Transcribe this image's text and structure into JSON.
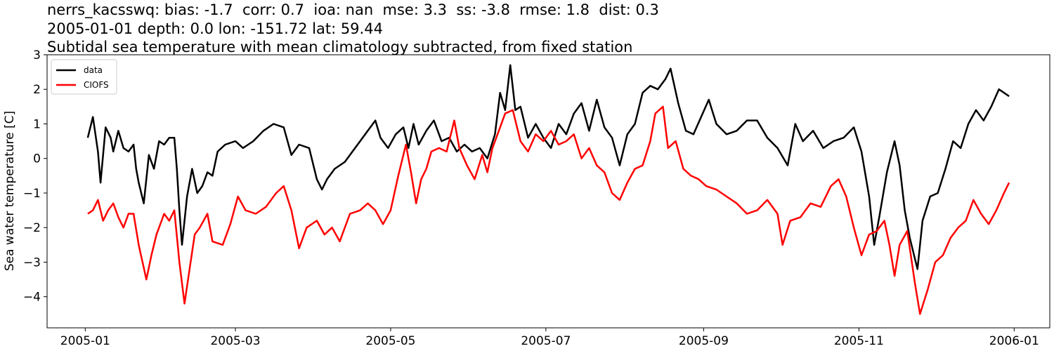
{
  "title": {
    "line1": "nerrs_kacsswq: bias: -1.7  corr: 0.7  ioa: nan  mse: 3.3  ss: -3.8  rmse: 1.8  dist: 0.3",
    "line2": "2005-01-01 depth: 0.0 lon: -151.72 lat: 59.44",
    "line3": "Subtidal sea temperature with mean climatology subtracted, from fixed station"
  },
  "chart_data": {
    "type": "line",
    "ylabel": "Sea water temperature [C]",
    "xlabel": "",
    "xlim": [
      "2004-12-17",
      "2006-01-15"
    ],
    "ylim": [
      -4.9,
      3.0
    ],
    "yticks": [
      3,
      2,
      1,
      0,
      -1,
      -2,
      -3,
      -4
    ],
    "ytick_labels": [
      "3",
      "2",
      "1",
      "0",
      "−1",
      "−2",
      "−3",
      "−4"
    ],
    "xticks": [
      "2005-01-01",
      "2005-03-01",
      "2005-05-01",
      "2005-07-01",
      "2005-09-01",
      "2005-11-01",
      "2006-01-01"
    ],
    "xtick_labels": [
      "2005-01",
      "2005-03",
      "2005-05",
      "2005-07",
      "2005-09",
      "2005-11",
      "2006-01"
    ],
    "grid": false,
    "legend": "top-left",
    "series": [
      {
        "name": "data",
        "color": "#000000",
        "points": [
          [
            "2005-01-02",
            0.6
          ],
          [
            "2005-01-04",
            1.2
          ],
          [
            "2005-01-06",
            0.2
          ],
          [
            "2005-01-07",
            -0.7
          ],
          [
            "2005-01-09",
            0.9
          ],
          [
            "2005-01-11",
            0.6
          ],
          [
            "2005-01-12",
            0.2
          ],
          [
            "2005-01-14",
            0.8
          ],
          [
            "2005-01-16",
            0.3
          ],
          [
            "2005-01-18",
            0.2
          ],
          [
            "2005-01-20",
            0.4
          ],
          [
            "2005-01-21",
            -0.3
          ],
          [
            "2005-01-22",
            -0.7
          ],
          [
            "2005-01-24",
            -1.3
          ],
          [
            "2005-01-26",
            0.1
          ],
          [
            "2005-01-28",
            -0.3
          ],
          [
            "2005-01-30",
            0.5
          ],
          [
            "2005-02-01",
            0.4
          ],
          [
            "2005-02-03",
            0.6
          ],
          [
            "2005-02-05",
            0.6
          ],
          [
            "2005-02-06",
            -0.3
          ],
          [
            "2005-02-07",
            -1.5
          ],
          [
            "2005-02-08",
            -2.5
          ],
          [
            "2005-02-10",
            -1.1
          ],
          [
            "2005-02-12",
            -0.3
          ],
          [
            "2005-02-14",
            -1.0
          ],
          [
            "2005-02-16",
            -0.8
          ],
          [
            "2005-02-18",
            -0.4
          ],
          [
            "2005-02-20",
            -0.5
          ],
          [
            "2005-02-22",
            0.2
          ],
          [
            "2005-02-25",
            0.4
          ],
          [
            "2005-03-01",
            0.5
          ],
          [
            "2005-03-04",
            0.3
          ],
          [
            "2005-03-08",
            0.5
          ],
          [
            "2005-03-12",
            0.8
          ],
          [
            "2005-03-16",
            1.0
          ],
          [
            "2005-03-20",
            0.9
          ],
          [
            "2005-03-23",
            0.1
          ],
          [
            "2005-03-26",
            0.4
          ],
          [
            "2005-03-30",
            0.3
          ],
          [
            "2005-04-02",
            -0.6
          ],
          [
            "2005-04-04",
            -0.9
          ],
          [
            "2005-04-06",
            -0.6
          ],
          [
            "2005-04-09",
            -0.3
          ],
          [
            "2005-04-13",
            -0.1
          ],
          [
            "2005-04-16",
            0.2
          ],
          [
            "2005-04-19",
            0.5
          ],
          [
            "2005-04-22",
            0.8
          ],
          [
            "2005-04-25",
            1.1
          ],
          [
            "2005-04-27",
            0.6
          ],
          [
            "2005-04-30",
            0.3
          ],
          [
            "2005-05-03",
            0.7
          ],
          [
            "2005-05-06",
            0.9
          ],
          [
            "2005-05-08",
            0.3
          ],
          [
            "2005-05-10",
            1.0
          ],
          [
            "2005-05-12",
            0.4
          ],
          [
            "2005-05-15",
            0.8
          ],
          [
            "2005-05-18",
            1.1
          ],
          [
            "2005-05-21",
            0.5
          ],
          [
            "2005-05-24",
            0.6
          ],
          [
            "2005-05-27",
            0.2
          ],
          [
            "2005-05-30",
            0.4
          ],
          [
            "2005-06-02",
            0.2
          ],
          [
            "2005-06-05",
            0.3
          ],
          [
            "2005-06-08",
            0.0
          ],
          [
            "2005-06-11",
            0.7
          ],
          [
            "2005-06-13",
            1.9
          ],
          [
            "2005-06-15",
            1.4
          ],
          [
            "2005-06-17",
            2.7
          ],
          [
            "2005-06-19",
            1.4
          ],
          [
            "2005-06-21",
            1.5
          ],
          [
            "2005-06-24",
            0.6
          ],
          [
            "2005-06-27",
            1.0
          ],
          [
            "2005-06-30",
            0.6
          ],
          [
            "2005-07-03",
            0.3
          ],
          [
            "2005-07-06",
            1.0
          ],
          [
            "2005-07-09",
            0.7
          ],
          [
            "2005-07-12",
            1.3
          ],
          [
            "2005-07-15",
            1.6
          ],
          [
            "2005-07-18",
            0.8
          ],
          [
            "2005-07-21",
            1.7
          ],
          [
            "2005-07-24",
            0.9
          ],
          [
            "2005-07-27",
            0.6
          ],
          [
            "2005-07-30",
            -0.2
          ],
          [
            "2005-08-02",
            0.7
          ],
          [
            "2005-08-05",
            1.0
          ],
          [
            "2005-08-08",
            1.9
          ],
          [
            "2005-08-11",
            2.1
          ],
          [
            "2005-08-14",
            2.0
          ],
          [
            "2005-08-17",
            2.3
          ],
          [
            "2005-08-19",
            2.6
          ],
          [
            "2005-08-22",
            1.6
          ],
          [
            "2005-08-25",
            0.8
          ],
          [
            "2005-08-28",
            0.7
          ],
          [
            "2005-08-31",
            1.2
          ],
          [
            "2005-09-03",
            1.7
          ],
          [
            "2005-09-06",
            1.0
          ],
          [
            "2005-09-10",
            0.7
          ],
          [
            "2005-09-14",
            0.8
          ],
          [
            "2005-09-18",
            1.1
          ],
          [
            "2005-09-22",
            1.1
          ],
          [
            "2005-09-26",
            0.6
          ],
          [
            "2005-09-30",
            0.3
          ],
          [
            "2005-10-04",
            -0.2
          ],
          [
            "2005-10-07",
            1.0
          ],
          [
            "2005-10-10",
            0.5
          ],
          [
            "2005-10-14",
            0.8
          ],
          [
            "2005-10-18",
            0.3
          ],
          [
            "2005-10-22",
            0.5
          ],
          [
            "2005-10-26",
            0.6
          ],
          [
            "2005-10-30",
            0.9
          ],
          [
            "2005-11-02",
            0.2
          ],
          [
            "2005-11-05",
            -1.1
          ],
          [
            "2005-11-07",
            -2.5
          ],
          [
            "2005-11-09",
            -1.7
          ],
          [
            "2005-11-12",
            -0.4
          ],
          [
            "2005-11-15",
            0.5
          ],
          [
            "2005-11-17",
            -0.2
          ],
          [
            "2005-11-19",
            -1.5
          ],
          [
            "2005-11-21",
            -2.3
          ],
          [
            "2005-11-24",
            -3.2
          ],
          [
            "2005-11-26",
            -1.8
          ],
          [
            "2005-11-29",
            -1.1
          ],
          [
            "2005-12-02",
            -1.0
          ],
          [
            "2005-12-05",
            -0.3
          ],
          [
            "2005-12-08",
            0.5
          ],
          [
            "2005-12-11",
            0.3
          ],
          [
            "2005-12-14",
            1.0
          ],
          [
            "2005-12-17",
            1.4
          ],
          [
            "2005-12-20",
            1.1
          ],
          [
            "2005-12-23",
            1.5
          ],
          [
            "2005-12-26",
            2.0
          ],
          [
            "2005-12-30",
            1.8
          ]
        ]
      },
      {
        "name": "CIOFS",
        "color": "#ff0000",
        "points": [
          [
            "2005-01-02",
            -1.6
          ],
          [
            "2005-01-04",
            -1.5
          ],
          [
            "2005-01-06",
            -1.2
          ],
          [
            "2005-01-08",
            -1.8
          ],
          [
            "2005-01-10",
            -1.5
          ],
          [
            "2005-01-12",
            -1.3
          ],
          [
            "2005-01-14",
            -1.7
          ],
          [
            "2005-01-16",
            -2.0
          ],
          [
            "2005-01-18",
            -1.6
          ],
          [
            "2005-01-20",
            -1.6
          ],
          [
            "2005-01-22",
            -2.5
          ],
          [
            "2005-01-25",
            -3.5
          ],
          [
            "2005-01-27",
            -2.8
          ],
          [
            "2005-01-29",
            -2.2
          ],
          [
            "2005-02-01",
            -1.6
          ],
          [
            "2005-02-03",
            -1.8
          ],
          [
            "2005-02-05",
            -1.5
          ],
          [
            "2005-02-07",
            -3.0
          ],
          [
            "2005-02-09",
            -4.2
          ],
          [
            "2005-02-11",
            -3.2
          ],
          [
            "2005-02-13",
            -2.2
          ],
          [
            "2005-02-15",
            -2.0
          ],
          [
            "2005-02-18",
            -1.6
          ],
          [
            "2005-02-20",
            -2.4
          ],
          [
            "2005-02-24",
            -2.5
          ],
          [
            "2005-02-27",
            -1.9
          ],
          [
            "2005-03-02",
            -1.1
          ],
          [
            "2005-03-05",
            -1.5
          ],
          [
            "2005-03-09",
            -1.6
          ],
          [
            "2005-03-13",
            -1.4
          ],
          [
            "2005-03-17",
            -1.0
          ],
          [
            "2005-03-20",
            -0.8
          ],
          [
            "2005-03-23",
            -1.5
          ],
          [
            "2005-03-26",
            -2.6
          ],
          [
            "2005-03-29",
            -2.0
          ],
          [
            "2005-04-02",
            -1.8
          ],
          [
            "2005-04-05",
            -2.2
          ],
          [
            "2005-04-08",
            -2.0
          ],
          [
            "2005-04-11",
            -2.4
          ],
          [
            "2005-04-15",
            -1.6
          ],
          [
            "2005-04-19",
            -1.5
          ],
          [
            "2005-04-22",
            -1.3
          ],
          [
            "2005-04-25",
            -1.5
          ],
          [
            "2005-04-28",
            -1.9
          ],
          [
            "2005-05-01",
            -1.5
          ],
          [
            "2005-05-04",
            -0.5
          ],
          [
            "2005-05-07",
            0.4
          ],
          [
            "2005-05-09",
            -0.4
          ],
          [
            "2005-05-11",
            -1.3
          ],
          [
            "2005-05-13",
            -0.6
          ],
          [
            "2005-05-15",
            -0.3
          ],
          [
            "2005-05-17",
            0.2
          ],
          [
            "2005-05-20",
            0.3
          ],
          [
            "2005-05-23",
            0.2
          ],
          [
            "2005-05-26",
            1.1
          ],
          [
            "2005-05-28",
            0.3
          ],
          [
            "2005-05-31",
            -0.2
          ],
          [
            "2005-06-03",
            -0.6
          ],
          [
            "2005-06-06",
            0.1
          ],
          [
            "2005-06-08",
            -0.4
          ],
          [
            "2005-06-10",
            0.3
          ],
          [
            "2005-06-12",
            0.7
          ],
          [
            "2005-06-15",
            1.3
          ],
          [
            "2005-06-18",
            1.4
          ],
          [
            "2005-06-21",
            0.5
          ],
          [
            "2005-06-24",
            0.2
          ],
          [
            "2005-06-27",
            0.7
          ],
          [
            "2005-06-30",
            0.5
          ],
          [
            "2005-07-03",
            0.8
          ],
          [
            "2005-07-06",
            0.4
          ],
          [
            "2005-07-09",
            0.5
          ],
          [
            "2005-07-12",
            0.7
          ],
          [
            "2005-07-15",
            0.0
          ],
          [
            "2005-07-18",
            0.3
          ],
          [
            "2005-07-21",
            -0.2
          ],
          [
            "2005-07-24",
            -0.4
          ],
          [
            "2005-07-27",
            -1.0
          ],
          [
            "2005-07-30",
            -1.2
          ],
          [
            "2005-08-02",
            -0.7
          ],
          [
            "2005-08-05",
            -0.3
          ],
          [
            "2005-08-08",
            -0.2
          ],
          [
            "2005-08-11",
            0.5
          ],
          [
            "2005-08-13",
            1.3
          ],
          [
            "2005-08-16",
            1.5
          ],
          [
            "2005-08-18",
            0.3
          ],
          [
            "2005-08-21",
            0.5
          ],
          [
            "2005-08-24",
            -0.3
          ],
          [
            "2005-08-27",
            -0.5
          ],
          [
            "2005-08-30",
            -0.6
          ],
          [
            "2005-09-02",
            -0.8
          ],
          [
            "2005-09-06",
            -0.9
          ],
          [
            "2005-09-10",
            -1.1
          ],
          [
            "2005-09-14",
            -1.3
          ],
          [
            "2005-09-18",
            -1.6
          ],
          [
            "2005-09-22",
            -1.5
          ],
          [
            "2005-09-26",
            -1.2
          ],
          [
            "2005-09-30",
            -1.6
          ],
          [
            "2005-10-02",
            -2.5
          ],
          [
            "2005-10-05",
            -1.8
          ],
          [
            "2005-10-09",
            -1.7
          ],
          [
            "2005-10-13",
            -1.3
          ],
          [
            "2005-10-17",
            -1.4
          ],
          [
            "2005-10-21",
            -0.8
          ],
          [
            "2005-10-24",
            -0.6
          ],
          [
            "2005-10-27",
            -1.1
          ],
          [
            "2005-10-30",
            -2.0
          ],
          [
            "2005-11-02",
            -2.8
          ],
          [
            "2005-11-05",
            -2.2
          ],
          [
            "2005-11-08",
            -2.1
          ],
          [
            "2005-11-11",
            -1.8
          ],
          [
            "2005-11-13",
            -2.5
          ],
          [
            "2005-11-15",
            -3.4
          ],
          [
            "2005-11-17",
            -2.5
          ],
          [
            "2005-11-20",
            -2.1
          ],
          [
            "2005-11-23",
            -3.6
          ],
          [
            "2005-11-25",
            -4.5
          ],
          [
            "2005-11-28",
            -3.8
          ],
          [
            "2005-12-01",
            -3.0
          ],
          [
            "2005-12-04",
            -2.8
          ],
          [
            "2005-12-07",
            -2.3
          ],
          [
            "2005-12-10",
            -2.0
          ],
          [
            "2005-12-13",
            -1.8
          ],
          [
            "2005-12-16",
            -1.2
          ],
          [
            "2005-12-19",
            -1.6
          ],
          [
            "2005-12-22",
            -1.9
          ],
          [
            "2005-12-25",
            -1.5
          ],
          [
            "2005-12-28",
            -1.0
          ],
          [
            "2005-12-30",
            -0.7
          ]
        ]
      }
    ]
  }
}
